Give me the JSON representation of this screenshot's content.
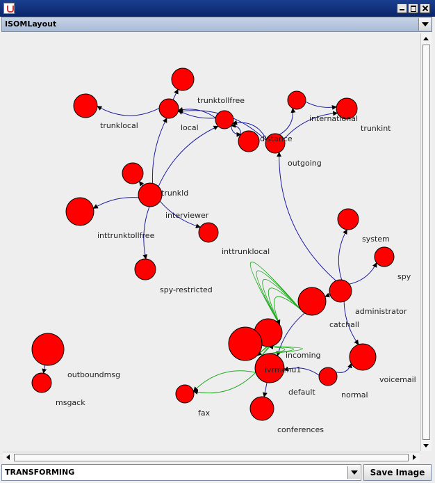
{
  "window": {
    "title": ""
  },
  "layout_selector": {
    "value": "ISOMLayout"
  },
  "mode_selector": {
    "value": "TRANSFORMING"
  },
  "save_button": {
    "label": "Save Image"
  },
  "graph": {
    "nodes": [
      {
        "id": "trunklocal",
        "label": "trunklocal"
      },
      {
        "id": "local_top",
        "label": ""
      },
      {
        "id": "local",
        "label": "local"
      },
      {
        "id": "trunktollfree",
        "label": "trunktollfree"
      },
      {
        "id": "n_top_right",
        "label": ""
      },
      {
        "id": "international",
        "label": "international"
      },
      {
        "id": "trunkint",
        "label": "trunkint"
      },
      {
        "id": "distance",
        "label": "distance"
      },
      {
        "id": "trunkld_small",
        "label": ""
      },
      {
        "id": "outgoing",
        "label": "outgoing"
      },
      {
        "id": "small_left",
        "label": ""
      },
      {
        "id": "trunkld",
        "label": "trunkld"
      },
      {
        "id": "inttrunktollfree",
        "label": "inttrunktollfree"
      },
      {
        "id": "interviewer",
        "label": "interviewer"
      },
      {
        "id": "inttrunklocal",
        "label": "inttrunklocal"
      },
      {
        "id": "spy_restricted",
        "label": "spy-restricted"
      },
      {
        "id": "system",
        "label": "system"
      },
      {
        "id": "spy",
        "label": "spy"
      },
      {
        "id": "administrator",
        "label": "administrator"
      },
      {
        "id": "catchall",
        "label": "catchall"
      },
      {
        "id": "incoming",
        "label": "incoming"
      },
      {
        "id": "big_left",
        "label": ""
      },
      {
        "id": "ivrmenu1",
        "label": "ivrmenu1"
      },
      {
        "id": "voicemail",
        "label": "voicemail"
      },
      {
        "id": "normal",
        "label": "normal"
      },
      {
        "id": "default",
        "label": "default"
      },
      {
        "id": "fax",
        "label": "fax"
      },
      {
        "id": "conferences",
        "label": "conferences"
      },
      {
        "id": "outboundmsg",
        "label": "outboundmsg"
      },
      {
        "id": "msgack",
        "label": "msgack"
      }
    ]
  },
  "colors": {
    "node_fill": "#ff0000",
    "edge_blue": "#1a1aa0",
    "edge_green": "#22aa22"
  }
}
